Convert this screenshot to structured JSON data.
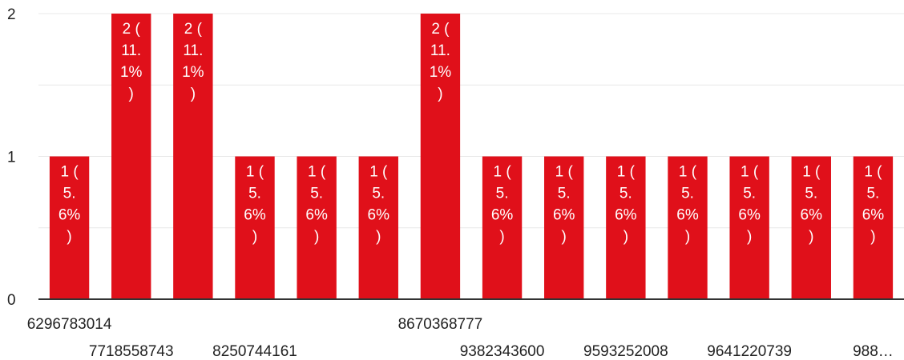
{
  "chart_data": {
    "type": "bar",
    "categories": [
      "6296783014",
      "7718558743",
      "",
      "8250744161",
      "",
      "",
      "8670368777",
      "9382343600",
      "",
      "9593252008",
      "",
      "9641220739",
      "",
      "988…"
    ],
    "values": [
      1,
      2,
      2,
      1,
      1,
      1,
      2,
      1,
      1,
      1,
      1,
      1,
      1,
      1
    ],
    "data_labels": [
      [
        "1 (",
        "5.",
        "6%",
        ")"
      ],
      [
        "2 (",
        "11.",
        "1%",
        ")"
      ],
      [
        "2 (",
        "11.",
        "1%",
        ")"
      ],
      [
        "1 (",
        "5.",
        "6%",
        ")"
      ],
      [
        "1 (",
        "5.",
        "6%",
        ")"
      ],
      [
        "1 (",
        "5.",
        "6%",
        ")"
      ],
      [
        "2 (",
        "11.",
        "1%",
        ")"
      ],
      [
        "1 (",
        "5.",
        "6%",
        ")"
      ],
      [
        "1 (",
        "5.",
        "6%",
        ")"
      ],
      [
        "1 (",
        "5.",
        "6%",
        ")"
      ],
      [
        "1 (",
        "5.",
        "6%",
        ")"
      ],
      [
        "1 (",
        "5.",
        "6%",
        ")"
      ],
      [
        "1 (",
        "5.",
        "6%",
        ")"
      ],
      [
        "1 (",
        "5.",
        "6%",
        ")"
      ]
    ],
    "yticks": [
      "0",
      "1",
      "2"
    ],
    "ylim": [
      0,
      2
    ],
    "grid": true,
    "bar_color": "#e0101a",
    "grid_color": "#e8e8e8",
    "axis_color": "#333333",
    "title": "",
    "xlabel": "",
    "ylabel": ""
  }
}
